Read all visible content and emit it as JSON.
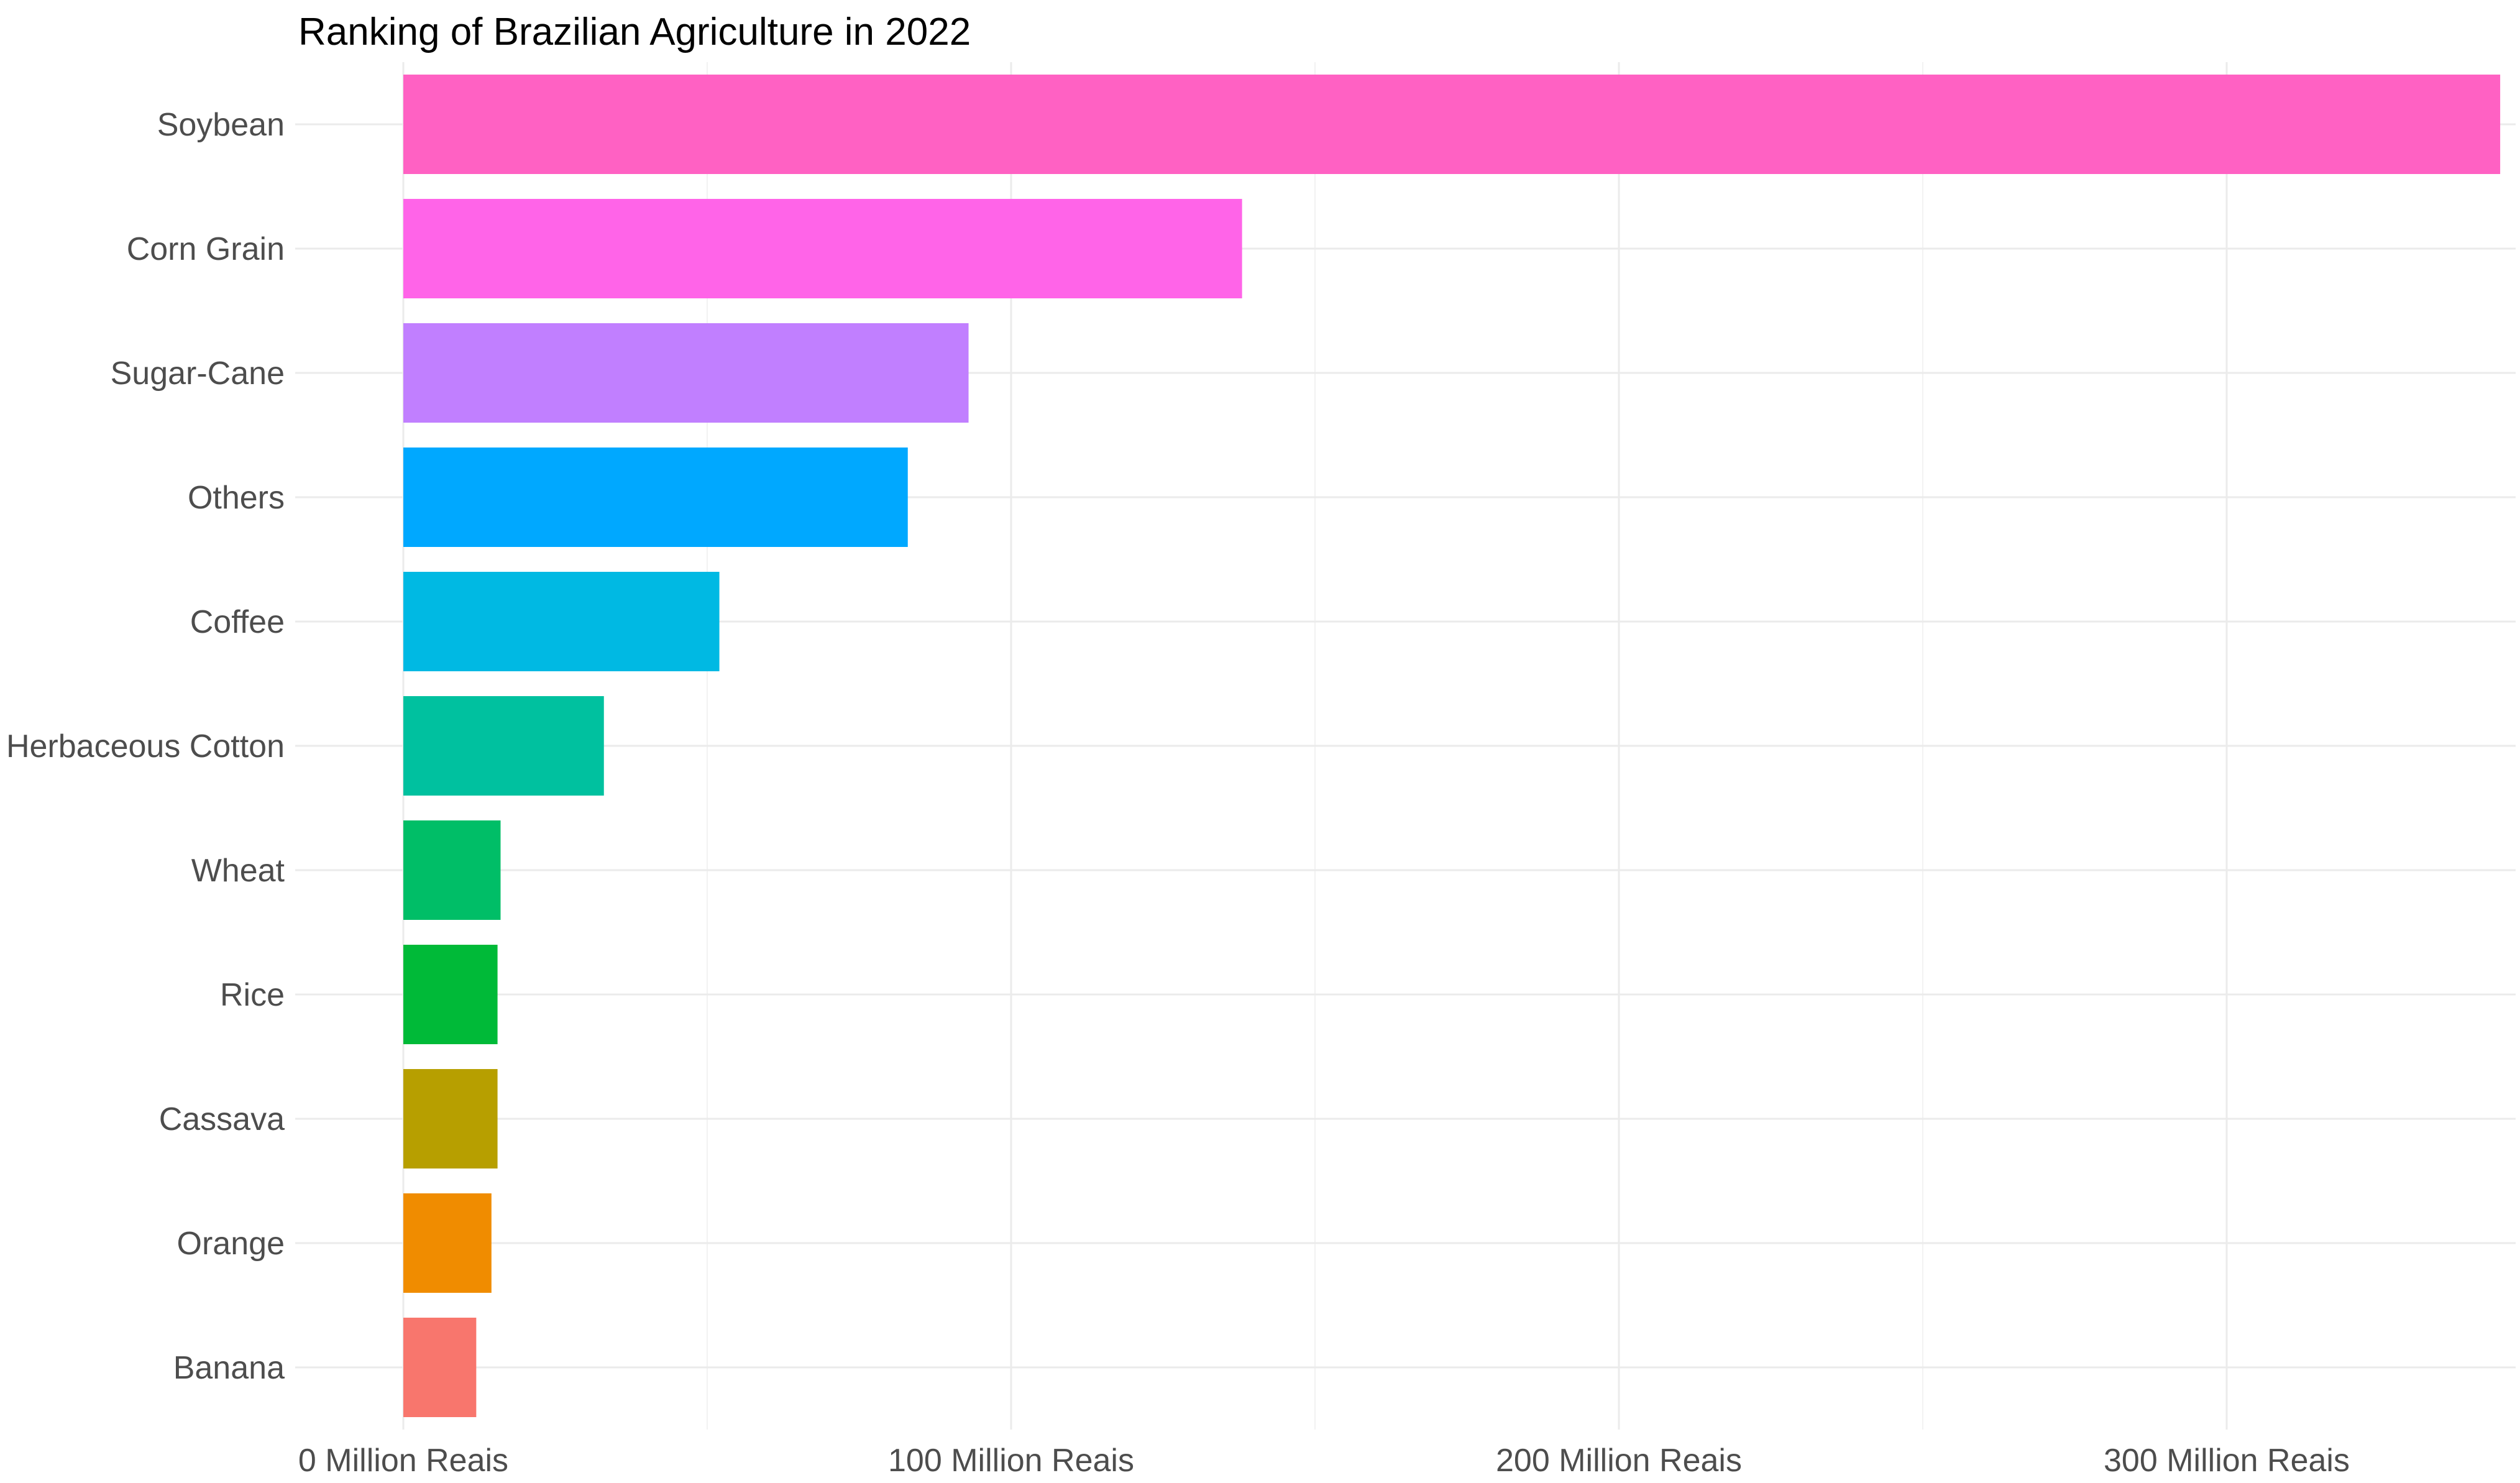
{
  "chart_data": {
    "type": "bar",
    "orientation": "horizontal",
    "title": "Ranking of Brazilian Agriculture in 2022",
    "xlabel": "",
    "ylabel": "",
    "categories": [
      "Soybean",
      "Corn Grain",
      "Sugar-Cane",
      "Others",
      "Coffee",
      "Herbaceous Cotton",
      "Wheat",
      "Rice",
      "Cassava",
      "Orange",
      "Banana"
    ],
    "values": [
      345,
      138,
      93,
      83,
      52,
      33,
      16,
      15.5,
      15.5,
      14.5,
      12
    ],
    "colors": [
      "#FF61C3",
      "#FF64E8",
      "#C17FFF",
      "#00A8FF",
      "#00B9E3",
      "#00C19F",
      "#00BE67",
      "#00BA38",
      "#B79F00",
      "#F08C00",
      "#F8766D"
    ],
    "x_ticks": [
      {
        "value": 0,
        "label": "0 Million Reais"
      },
      {
        "value": 100,
        "label": "100 Million Reais"
      },
      {
        "value": 200,
        "label": "200 Million Reais"
      },
      {
        "value": 300,
        "label": "300 Million Reais"
      }
    ],
    "x_minor_ticks": [
      50,
      150,
      250,
      350
    ],
    "xlim": [
      -17.5,
      347
    ],
    "grid": true,
    "legend": "none"
  }
}
